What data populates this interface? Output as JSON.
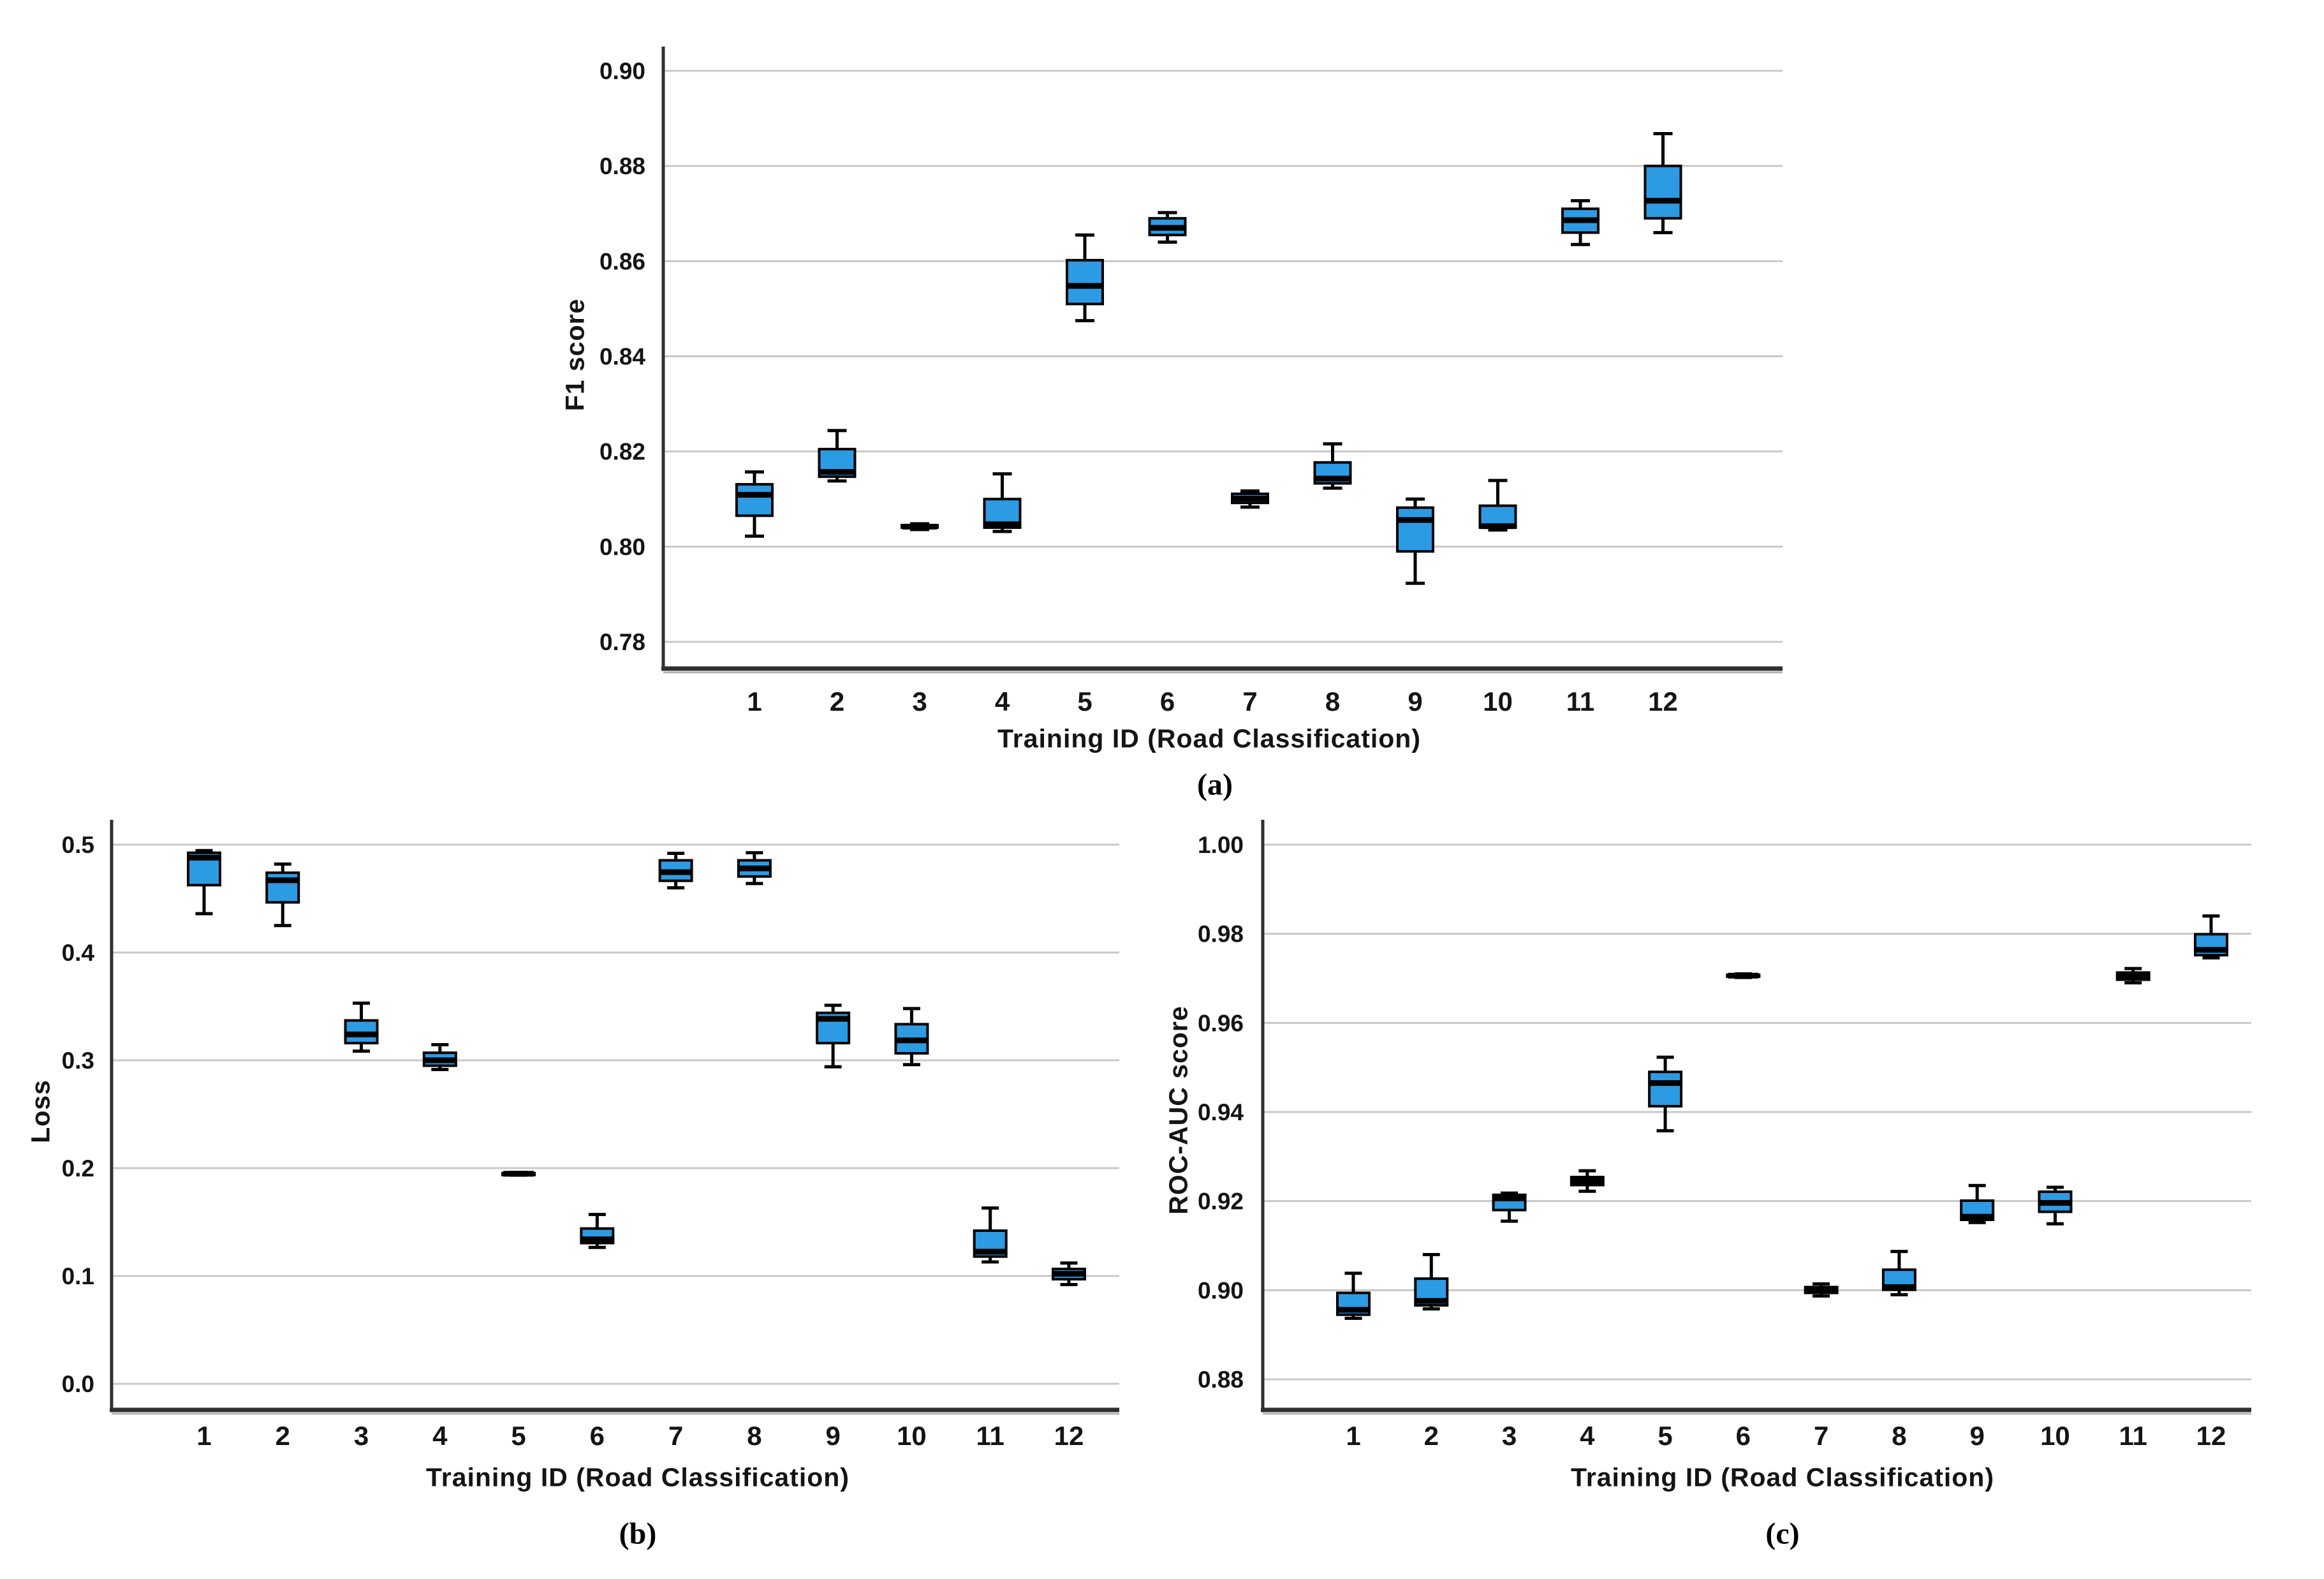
{
  "style": {
    "box_fill": "#2D9BE3",
    "box_stroke": "#000000",
    "median_color": "#000000",
    "grid_color": "#c8c8c8",
    "axis_color": "#2f2f2f",
    "axis_shadow_color": "#b5b5b5",
    "text_color": "#141414",
    "background": "#ffffff"
  },
  "chart_data": [
    {
      "id": "a",
      "type": "box",
      "caption": "(a)",
      "xlabel": "Training ID (Road Classification)",
      "ylabel": "F1 score",
      "legend_position": "none",
      "grid": true,
      "categories": [
        "1",
        "2",
        "3",
        "4",
        "5",
        "6",
        "7",
        "8",
        "9",
        "10",
        "11",
        "12"
      ],
      "yticks": [
        0.78,
        0.8,
        0.82,
        0.84,
        0.86,
        0.88,
        0.9
      ],
      "ytick_labels": [
        "0.78",
        "0.80",
        "0.82",
        "0.84",
        "0.86",
        "0.88",
        "0.90"
      ],
      "ylim": [
        0.7745,
        0.908
      ],
      "boxes": [
        {
          "whislo": 0.8022,
          "q1": 0.8065,
          "med": 0.8109,
          "q3": 0.8131,
          "whishi": 0.8157
        },
        {
          "whislo": 0.8138,
          "q1": 0.8147,
          "med": 0.8157,
          "q3": 0.8205,
          "whishi": 0.8244
        },
        {
          "whislo": 0.8036,
          "q1": 0.804,
          "med": 0.8042,
          "q3": 0.8045,
          "whishi": 0.8048
        },
        {
          "whislo": 0.8032,
          "q1": 0.804,
          "med": 0.8047,
          "q3": 0.81,
          "whishi": 0.8153
        },
        {
          "whislo": 0.8475,
          "q1": 0.851,
          "med": 0.8548,
          "q3": 0.8602,
          "whishi": 0.8655
        },
        {
          "whislo": 0.864,
          "q1": 0.8655,
          "med": 0.867,
          "q3": 0.869,
          "whishi": 0.8702
        },
        {
          "whislo": 0.8083,
          "q1": 0.8092,
          "med": 0.8101,
          "q3": 0.8111,
          "whishi": 0.8117
        },
        {
          "whislo": 0.8123,
          "q1": 0.8133,
          "med": 0.8143,
          "q3": 0.8177,
          "whishi": 0.8216
        },
        {
          "whislo": 0.7923,
          "q1": 0.799,
          "med": 0.8056,
          "q3": 0.8082,
          "whishi": 0.81
        },
        {
          "whislo": 0.8035,
          "q1": 0.804,
          "med": 0.8043,
          "q3": 0.8086,
          "whishi": 0.8139
        },
        {
          "whislo": 0.8635,
          "q1": 0.866,
          "med": 0.8686,
          "q3": 0.871,
          "whishi": 0.8727
        },
        {
          "whislo": 0.866,
          "q1": 0.869,
          "med": 0.8727,
          "q3": 0.88,
          "whishi": 0.8868
        }
      ]
    },
    {
      "id": "b",
      "type": "box",
      "caption": "(b)",
      "xlabel": "Training ID (Road Classification)",
      "ylabel": "Loss",
      "legend_position": "none",
      "grid": true,
      "categories": [
        "1",
        "2",
        "3",
        "4",
        "5",
        "6",
        "7",
        "8",
        "9",
        "10",
        "11",
        "12"
      ],
      "yticks": [
        0.0,
        0.1,
        0.2,
        0.3,
        0.4,
        0.5
      ],
      "ytick_labels": [
        "0.0",
        "0.1",
        "0.2",
        "0.3",
        "0.4",
        "0.5"
      ],
      "ylim": [
        -0.026,
        0.523
      ],
      "boxes": [
        {
          "whislo": 0.436,
          "q1": 0.4625,
          "med": 0.488,
          "q3": 0.4925,
          "whishi": 0.4945
        },
        {
          "whislo": 0.425,
          "q1": 0.4465,
          "med": 0.467,
          "q3": 0.474,
          "whishi": 0.482
        },
        {
          "whislo": 0.3085,
          "q1": 0.316,
          "med": 0.324,
          "q3": 0.337,
          "whishi": 0.353
        },
        {
          "whislo": 0.2915,
          "q1": 0.295,
          "med": 0.3,
          "q3": 0.307,
          "whishi": 0.3145
        },
        {
          "whislo": 0.1935,
          "q1": 0.1942,
          "med": 0.1948,
          "q3": 0.1954,
          "whishi": 0.196
        },
        {
          "whislo": 0.1265,
          "q1": 0.1305,
          "med": 0.134,
          "q3": 0.144,
          "whishi": 0.157
        },
        {
          "whislo": 0.46,
          "q1": 0.4665,
          "med": 0.4745,
          "q3": 0.4855,
          "whishi": 0.492
        },
        {
          "whislo": 0.464,
          "q1": 0.4705,
          "med": 0.478,
          "q3": 0.4855,
          "whishi": 0.4925
        },
        {
          "whislo": 0.294,
          "q1": 0.316,
          "med": 0.3385,
          "q3": 0.344,
          "whishi": 0.351
        },
        {
          "whislo": 0.296,
          "q1": 0.3065,
          "med": 0.3185,
          "q3": 0.3335,
          "whishi": 0.348
        },
        {
          "whislo": 0.113,
          "q1": 0.118,
          "med": 0.1225,
          "q3": 0.142,
          "whishi": 0.163
        },
        {
          "whislo": 0.092,
          "q1": 0.097,
          "med": 0.102,
          "q3": 0.1065,
          "whishi": 0.112
        }
      ]
    },
    {
      "id": "c",
      "type": "box",
      "caption": "(c)",
      "xlabel": "Training ID (Road Classification)",
      "ylabel": "ROC-AUC score",
      "legend_position": "none",
      "grid": true,
      "categories": [
        "1",
        "2",
        "3",
        "4",
        "5",
        "6",
        "7",
        "8",
        "9",
        "10",
        "11",
        "12"
      ],
      "yticks": [
        0.88,
        0.9,
        0.92,
        0.94,
        0.96,
        0.98,
        1.0
      ],
      "ytick_labels": [
        "0.88",
        "0.90",
        "0.92",
        "0.94",
        "0.96",
        "0.98",
        "1.00"
      ],
      "ylim": [
        0.8745,
        1.006
      ],
      "boxes": [
        {
          "whislo": 0.8937,
          "q1": 0.8945,
          "med": 0.8956,
          "q3": 0.8994,
          "whishi": 0.9038
        },
        {
          "whislo": 0.8958,
          "q1": 0.8966,
          "med": 0.8976,
          "q3": 0.9026,
          "whishi": 0.908
        },
        {
          "whislo": 0.9155,
          "q1": 0.918,
          "med": 0.9206,
          "q3": 0.9214,
          "whishi": 0.9218
        },
        {
          "whislo": 0.9222,
          "q1": 0.9236,
          "med": 0.9245,
          "q3": 0.9254,
          "whishi": 0.9268
        },
        {
          "whislo": 0.9358,
          "q1": 0.9413,
          "med": 0.9465,
          "q3": 0.949,
          "whishi": 0.9523
        },
        {
          "whislo": 0.9702,
          "q1": 0.9704,
          "med": 0.9706,
          "q3": 0.9708,
          "whishi": 0.971
        },
        {
          "whislo": 0.8987,
          "q1": 0.8994,
          "med": 0.9001,
          "q3": 0.9007,
          "whishi": 0.9014
        },
        {
          "whislo": 0.899,
          "q1": 0.9001,
          "med": 0.9007,
          "q3": 0.9046,
          "whishi": 0.9087
        },
        {
          "whislo": 0.9152,
          "q1": 0.9158,
          "med": 0.9165,
          "q3": 0.9201,
          "whishi": 0.9235
        },
        {
          "whislo": 0.9149,
          "q1": 0.9176,
          "med": 0.9196,
          "q3": 0.9221,
          "whishi": 0.9231
        },
        {
          "whislo": 0.969,
          "q1": 0.9697,
          "med": 0.9706,
          "q3": 0.9713,
          "whishi": 0.9722
        },
        {
          "whislo": 0.9746,
          "q1": 0.9752,
          "med": 0.9764,
          "q3": 0.9799,
          "whishi": 0.984
        }
      ]
    }
  ]
}
